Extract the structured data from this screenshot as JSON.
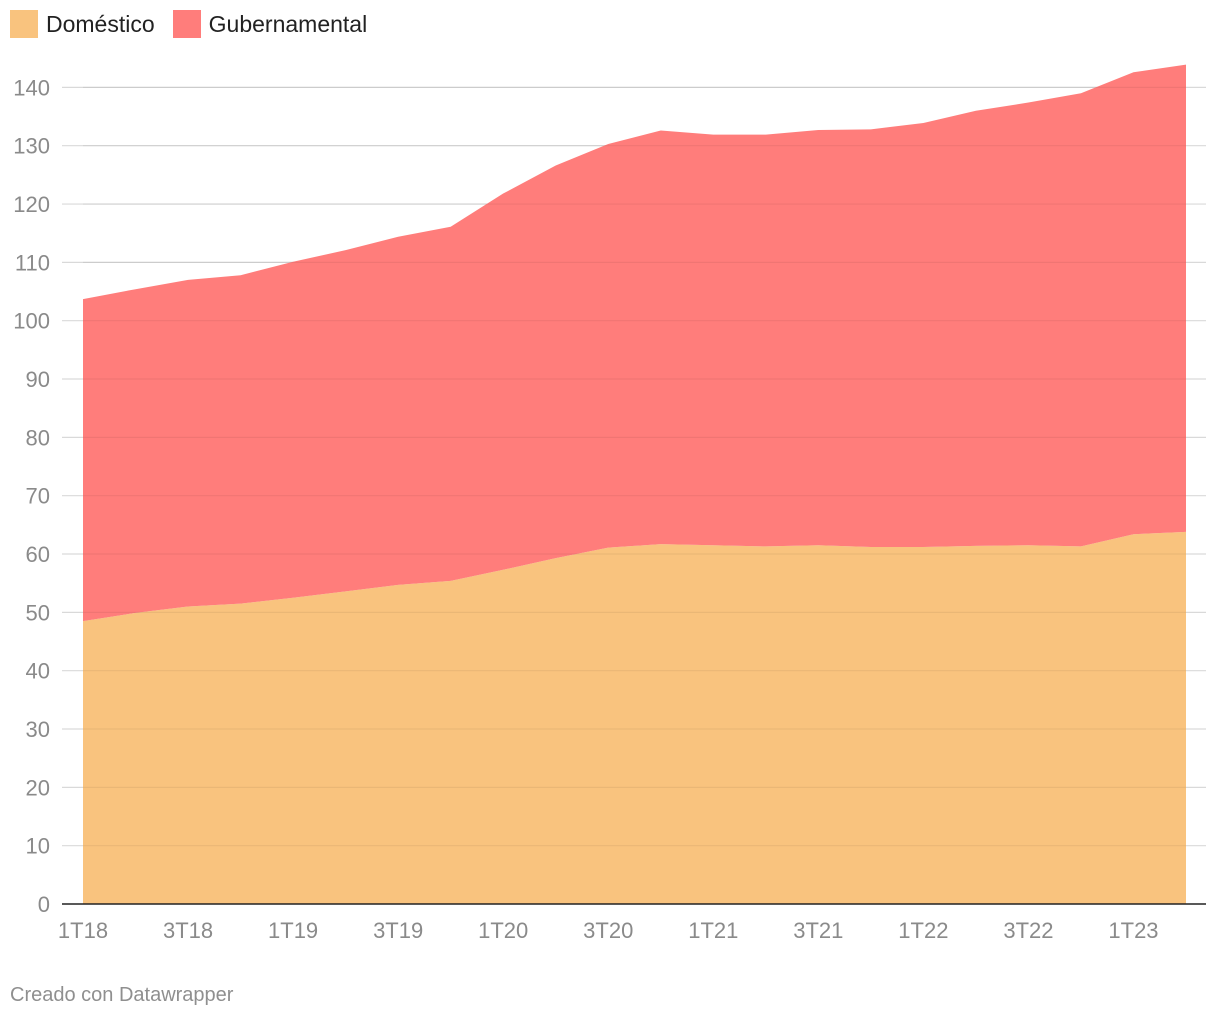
{
  "chart_data": {
    "type": "area",
    "stacked": true,
    "categories": [
      "1T18",
      "2T18",
      "3T18",
      "4T18",
      "1T19",
      "2T19",
      "3T19",
      "4T19",
      "1T20",
      "2T20",
      "3T20",
      "4T20",
      "1T21",
      "2T21",
      "3T21",
      "4T21",
      "1T22",
      "2T22",
      "3T22",
      "4T22",
      "1T23",
      "2T23"
    ],
    "x_tick_labels": [
      "1T18",
      "3T18",
      "1T19",
      "3T19",
      "1T20",
      "3T20",
      "1T21",
      "3T21",
      "1T22",
      "3T22",
      "1T23"
    ],
    "series": [
      {
        "name": "Doméstico",
        "color": "#f9c37e",
        "values": [
          48.5,
          49.9,
          51.0,
          51.5,
          52.5,
          53.6,
          54.7,
          55.4,
          57.3,
          59.3,
          61.1,
          61.7,
          61.5,
          61.3,
          61.5,
          61.2,
          61.2,
          61.4,
          61.5,
          61.3,
          63.4,
          63.8
        ]
      },
      {
        "name": "Gubernamental",
        "color": "#ff7d7b",
        "values": [
          55.2,
          55.5,
          56.0,
          56.3,
          57.6,
          58.5,
          59.7,
          60.7,
          64.5,
          67.3,
          69.2,
          70.9,
          70.4,
          70.6,
          71.2,
          71.6,
          72.7,
          74.6,
          75.9,
          77.7,
          79.2,
          80.1
        ]
      }
    ],
    "ylim": [
      0,
      145
    ],
    "y_ticks": [
      0,
      10,
      20,
      30,
      40,
      50,
      60,
      70,
      80,
      90,
      100,
      110,
      120,
      130,
      140
    ],
    "grid": true,
    "legend_position": "top-left"
  },
  "legend": [
    {
      "label": "Doméstico",
      "color": "#f9c37e"
    },
    {
      "label": "Gubernamental",
      "color": "#ff7d7b"
    }
  ],
  "credit": "Creado con Datawrapper"
}
